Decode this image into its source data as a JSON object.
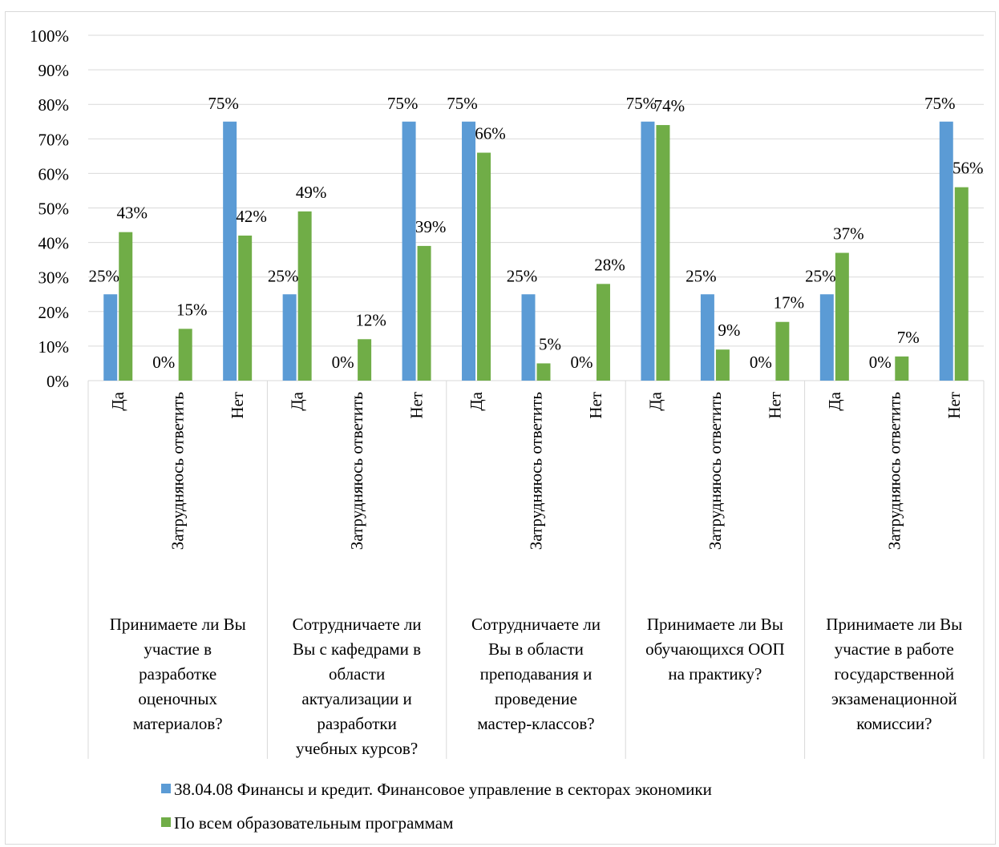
{
  "chart_data": {
    "type": "bar",
    "title": "",
    "xlabel": "",
    "ylabel": "",
    "ylim": [
      0,
      100
    ],
    "y_tick_labels": [
      "0%",
      "10%",
      "20%",
      "30%",
      "40%",
      "50%",
      "60%",
      "70%",
      "80%",
      "90%",
      "100%"
    ],
    "grid": true,
    "legend_position": "bottom",
    "colors": {
      "series1": "#5b9bd5",
      "series2": "#70ad47",
      "grid": "#d9d9d9",
      "axis": "#d9d9d9"
    },
    "groups": [
      {
        "label_lines": [
          "Принимаете ли Вы",
          "участие в",
          "разработке",
          "оценочных",
          "материалов?"
        ]
      },
      {
        "label_lines": [
          "Сотрудничаете ли",
          "Вы с кафедрами в",
          "области",
          "актуализации и",
          "разработки",
          "учебных курсов?"
        ]
      },
      {
        "label_lines": [
          "Сотрудничаете ли",
          "Вы в области",
          "преподавания и",
          "проведение",
          "мастер-классов?"
        ]
      },
      {
        "label_lines": [
          "Принимаете ли Вы",
          "обучающихся ООП",
          "на практику?"
        ]
      },
      {
        "label_lines": [
          "Принимаете ли Вы",
          "участие в работе",
          "государственной",
          "экзаменационной",
          "комиссии?"
        ]
      }
    ],
    "categories": [
      "Да",
      "Затрудняюсь ответить",
      "Нет",
      "Да",
      "Затрудняюсь ответить",
      "Нет",
      "Да",
      "Затрудняюсь ответить",
      "Нет",
      "Да",
      "Затрудняюсь ответить",
      "Нет",
      "Да",
      "Затрудняюсь ответить",
      "Нет"
    ],
    "series": [
      {
        "name": "38.04.08 Финансы и кредит. Финансовое управление в секторах экономики",
        "values": [
          25,
          0,
          75,
          25,
          0,
          75,
          75,
          25,
          0,
          75,
          25,
          0,
          25,
          0,
          75
        ],
        "labels": [
          "25%",
          "0%",
          "75%",
          "25%",
          "0%",
          "75%",
          "75%",
          "25%",
          "0%",
          "75%",
          "25%",
          "0%",
          "25%",
          "0%",
          "75%"
        ]
      },
      {
        "name": "По всем образовательным программам",
        "values": [
          43,
          15,
          42,
          49,
          12,
          39,
          66,
          5,
          28,
          74,
          9,
          17,
          37,
          7,
          56
        ],
        "labels": [
          "43%",
          "15%",
          "42%",
          "49%",
          "12%",
          "39%",
          "66%",
          "5%",
          "28%",
          "74%",
          "9%",
          "17%",
          "37%",
          "7%",
          "56%"
        ]
      }
    ]
  }
}
